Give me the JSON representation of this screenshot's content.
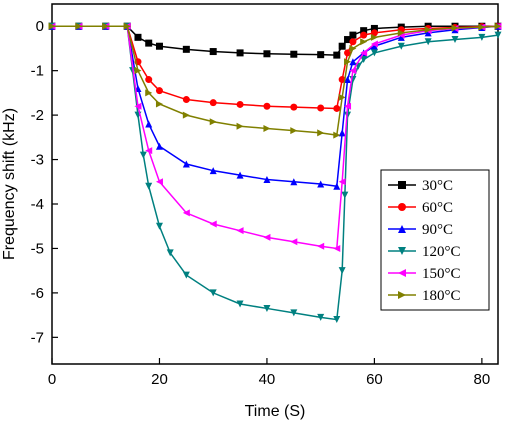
{
  "chart_data": {
    "type": "scatter",
    "title": "",
    "xlabel": "Time (S)",
    "ylabel": "Frequency shift (kHz)",
    "xlim": [
      0,
      83
    ],
    "ylim": [
      -7.6,
      0.5
    ],
    "xticks": [
      0,
      20,
      40,
      60,
      80
    ],
    "yticks": [
      0,
      -1,
      -2,
      -3,
      -4,
      -5,
      -6,
      -7
    ],
    "grid": false,
    "legend_position": "right",
    "series": [
      {
        "name": "30°C",
        "color": "#000000",
        "marker": "square",
        "x": [
          0,
          5,
          10,
          14,
          16,
          18,
          20,
          25,
          30,
          35,
          40,
          45,
          50,
          53,
          54,
          55,
          56,
          58,
          60,
          65,
          70,
          75,
          80,
          83
        ],
        "y": [
          0,
          0,
          0,
          0,
          -0.25,
          -0.38,
          -0.45,
          -0.52,
          -0.57,
          -0.6,
          -0.62,
          -0.63,
          -0.64,
          -0.65,
          -0.45,
          -0.3,
          -0.2,
          -0.1,
          -0.05,
          -0.02,
          0,
          0,
          0,
          0
        ]
      },
      {
        "name": "60°C",
        "color": "#ff0000",
        "marker": "circle",
        "x": [
          0,
          5,
          10,
          14,
          16,
          18,
          20,
          25,
          30,
          35,
          40,
          45,
          50,
          53,
          54,
          55,
          56,
          58,
          60,
          65,
          70,
          75,
          80,
          83
        ],
        "y": [
          0,
          0,
          0,
          0,
          -0.8,
          -1.2,
          -1.45,
          -1.65,
          -1.72,
          -1.76,
          -1.8,
          -1.82,
          -1.84,
          -1.85,
          -1.2,
          -0.6,
          -0.35,
          -0.2,
          -0.15,
          -0.08,
          -0.05,
          -0.03,
          -0.01,
          0
        ]
      },
      {
        "name": "90°C",
        "color": "#0000ff",
        "marker": "triangle-up",
        "x": [
          0,
          5,
          10,
          14,
          16,
          18,
          20,
          25,
          30,
          35,
          40,
          45,
          50,
          53,
          54,
          55,
          56,
          58,
          60,
          65,
          70,
          75,
          80,
          83
        ],
        "y": [
          0,
          0,
          0,
          0,
          -1.4,
          -2.2,
          -2.7,
          -3.1,
          -3.25,
          -3.35,
          -3.45,
          -3.5,
          -3.55,
          -3.6,
          -2.4,
          -1.2,
          -0.8,
          -0.6,
          -0.45,
          -0.25,
          -0.15,
          -0.08,
          -0.03,
          0
        ]
      },
      {
        "name": "120°C",
        "color": "#008080",
        "marker": "triangle-down",
        "x": [
          0,
          5,
          10,
          14,
          15,
          16,
          17,
          18,
          20,
          22,
          25,
          30,
          35,
          40,
          45,
          50,
          53,
          54,
          54.5,
          55,
          56,
          57,
          58,
          60,
          65,
          70,
          75,
          80,
          83
        ],
        "y": [
          0,
          0,
          0,
          0,
          -1.0,
          -2.0,
          -2.9,
          -3.6,
          -4.5,
          -5.1,
          -5.6,
          -6.0,
          -6.25,
          -6.35,
          -6.45,
          -6.55,
          -6.6,
          -5.5,
          -3.8,
          -2.0,
          -1.2,
          -0.9,
          -0.75,
          -0.6,
          -0.45,
          -0.35,
          -0.3,
          -0.25,
          -0.2
        ]
      },
      {
        "name": "150°C",
        "color": "#ff00ff",
        "marker": "triangle-left",
        "x": [
          0,
          5,
          10,
          14,
          16,
          18,
          20,
          25,
          30,
          35,
          40,
          45,
          50,
          53,
          54,
          55,
          56,
          58,
          60,
          65,
          70,
          75,
          80,
          83
        ],
        "y": [
          0,
          0,
          0,
          0,
          -1.8,
          -2.8,
          -3.5,
          -4.2,
          -4.45,
          -4.6,
          -4.75,
          -4.85,
          -4.95,
          -5.0,
          -3.5,
          -1.8,
          -1.0,
          -0.6,
          -0.4,
          -0.2,
          -0.1,
          -0.05,
          -0.02,
          0
        ]
      },
      {
        "name": "180°C",
        "color": "#808000",
        "marker": "triangle-right",
        "x": [
          0,
          5,
          10,
          14,
          16,
          18,
          20,
          25,
          30,
          35,
          40,
          45,
          50,
          53,
          54,
          55,
          56,
          58,
          60,
          65,
          70,
          75,
          80,
          83
        ],
        "y": [
          0,
          0,
          0,
          0,
          -1.0,
          -1.5,
          -1.75,
          -2.0,
          -2.15,
          -2.25,
          -2.3,
          -2.35,
          -2.4,
          -2.45,
          -1.6,
          -0.8,
          -0.5,
          -0.35,
          -0.25,
          -0.15,
          -0.08,
          -0.04,
          -0.02,
          0
        ]
      }
    ]
  }
}
